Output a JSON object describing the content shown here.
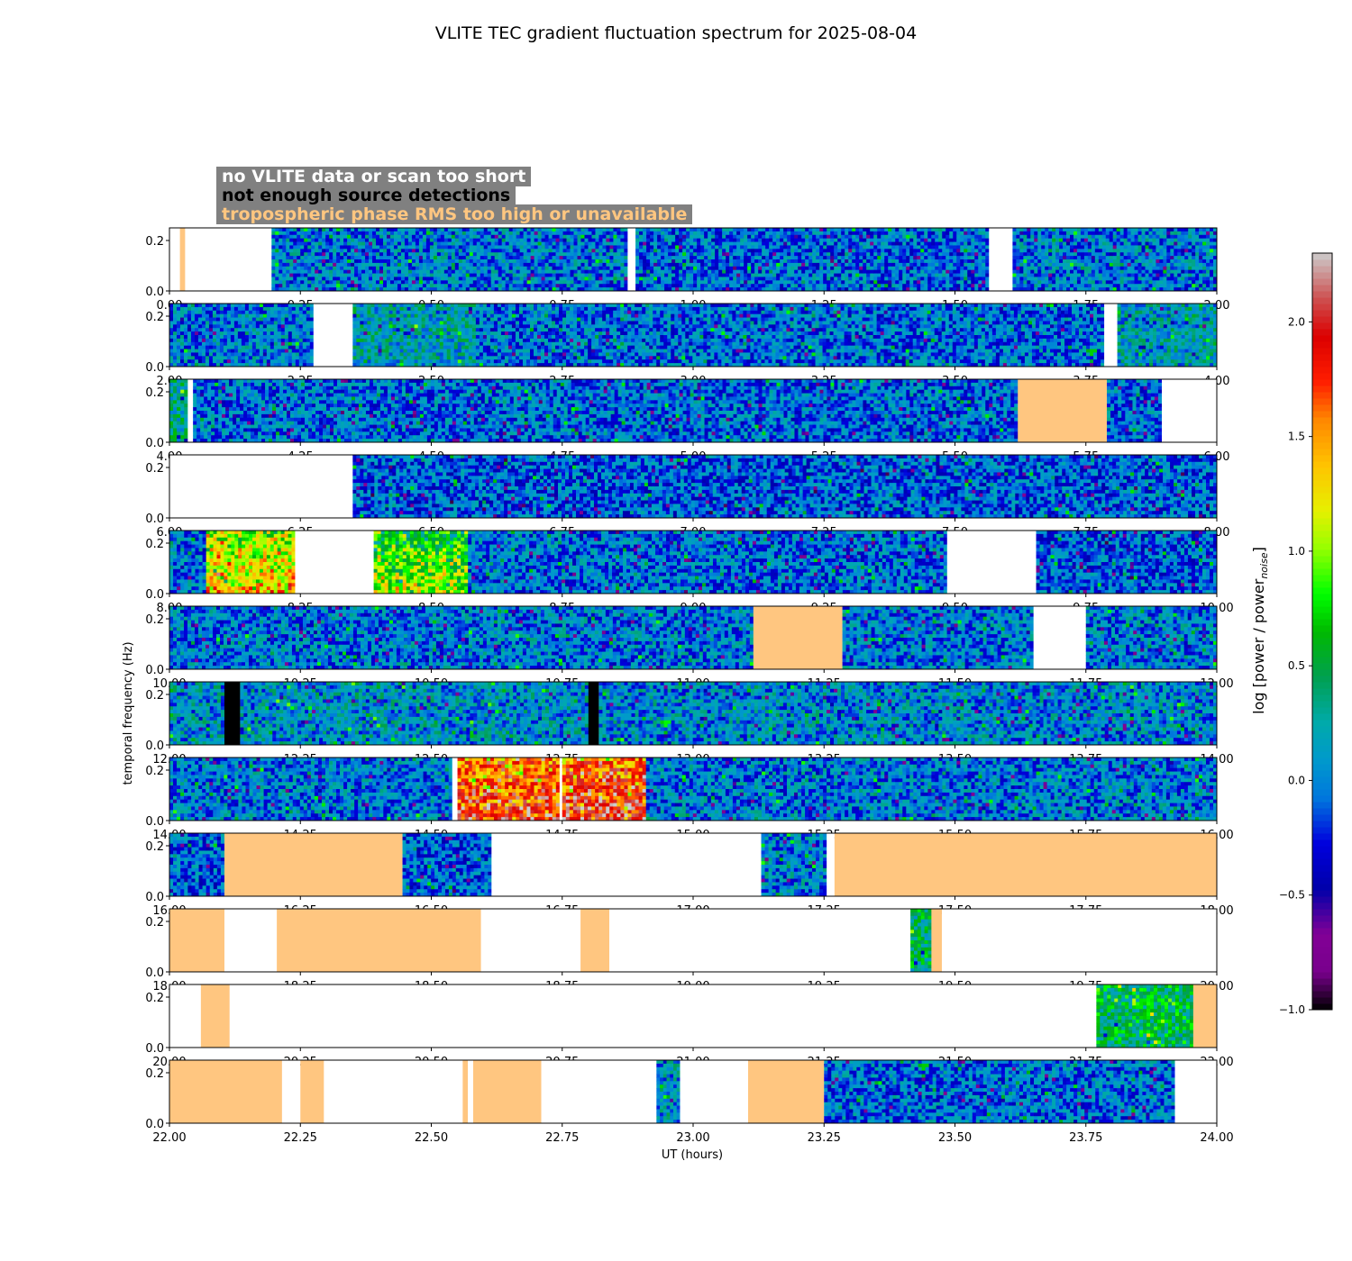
{
  "title": "VLITE TEC gradient fluctuation spectrum for 2025-08-04",
  "legend": [
    {
      "label": "no VLITE data or scan too short",
      "color": "#ffffff"
    },
    {
      "label": "not enough source detections",
      "color": "#000000"
    },
    {
      "label": "tropospheric phase RMS too high or unavailable",
      "color": "#ffc680"
    }
  ],
  "chart_data": {
    "type": "heatmap",
    "title": "VLITE TEC gradient fluctuation spectrum for 2025-08-04",
    "xlabel": "UT (hours)",
    "ylabel": "temporal frequency (Hz)",
    "ylim": [
      0,
      0.25
    ],
    "yticks": [
      "0.0",
      "0.2"
    ],
    "colorbar": {
      "label": "log [power / power",
      "label_sub": "noise",
      "label_end": "]",
      "range": [
        -1.0,
        2.3
      ],
      "ticks": [
        -1.0,
        -0.5,
        0.0,
        0.5,
        1.0,
        1.5,
        2.0
      ],
      "tick_labels": [
        "−1.0",
        "−0.5",
        "0.0",
        "0.5",
        "1.0",
        "1.5",
        "2.0"
      ]
    },
    "panels": [
      {
        "start": 0,
        "end": 2,
        "xticks": [
          "0.00",
          "0.25",
          "0.50",
          "0.75",
          "1.00",
          "1.25",
          "1.50",
          "1.75",
          "2.00"
        ],
        "segments": [
          {
            "s": 0.0,
            "e": 0.02,
            "k": "white"
          },
          {
            "s": 0.02,
            "e": 0.03,
            "k": "tropo"
          },
          {
            "s": 0.03,
            "e": 0.195,
            "k": "white"
          },
          {
            "s": 0.195,
            "e": 0.875,
            "k": "data",
            "lvl": 0.0
          },
          {
            "s": 0.875,
            "e": 0.89,
            "k": "white"
          },
          {
            "s": 0.89,
            "e": 1.565,
            "k": "data",
            "lvl": -0.05
          },
          {
            "s": 1.565,
            "e": 1.61,
            "k": "white"
          },
          {
            "s": 1.61,
            "e": 2.0,
            "k": "data",
            "lvl": 0.0
          }
        ]
      },
      {
        "start": 2,
        "end": 4,
        "xticks": [
          "2.00",
          "2.25",
          "2.50",
          "2.75",
          "3.00",
          "3.25",
          "3.50",
          "3.75",
          "4.00"
        ],
        "segments": [
          {
            "s": 2.0,
            "e": 2.275,
            "k": "data",
            "lvl": 0.0
          },
          {
            "s": 2.275,
            "e": 2.35,
            "k": "white"
          },
          {
            "s": 2.35,
            "e": 2.585,
            "k": "data",
            "lvl": 0.2
          },
          {
            "s": 2.585,
            "e": 3.785,
            "k": "data",
            "lvl": -0.05
          },
          {
            "s": 3.785,
            "e": 3.81,
            "k": "white"
          },
          {
            "s": 3.81,
            "e": 4.0,
            "k": "data",
            "lvl": 0.15
          }
        ]
      },
      {
        "start": 4,
        "end": 6,
        "xticks": [
          "4.00",
          "4.25",
          "4.50",
          "4.75",
          "5.00",
          "5.25",
          "5.50",
          "5.75",
          "6.00"
        ],
        "segments": [
          {
            "s": 4.0,
            "e": 4.035,
            "k": "data",
            "lvl": 0.3
          },
          {
            "s": 4.035,
            "e": 4.045,
            "k": "white"
          },
          {
            "s": 4.045,
            "e": 5.62,
            "k": "data",
            "lvl": -0.05
          },
          {
            "s": 5.62,
            "e": 5.79,
            "k": "tropo"
          },
          {
            "s": 5.79,
            "e": 5.895,
            "k": "data",
            "lvl": -0.05
          },
          {
            "s": 5.895,
            "e": 6.0,
            "k": "white"
          }
        ]
      },
      {
        "start": 6,
        "end": 8,
        "xticks": [
          "6.00",
          "6.25",
          "6.50",
          "6.75",
          "7.00",
          "7.25",
          "7.50",
          "7.75",
          "8.00"
        ],
        "segments": [
          {
            "s": 6.0,
            "e": 6.35,
            "k": "white"
          },
          {
            "s": 6.35,
            "e": 8.0,
            "k": "data",
            "lvl": -0.1
          }
        ]
      },
      {
        "start": 8,
        "end": 10,
        "xticks": [
          "8.00",
          "8.25",
          "8.50",
          "8.75",
          "9.00",
          "9.25",
          "9.50",
          "9.75",
          "10.00"
        ],
        "segments": [
          {
            "s": 8.0,
            "e": 8.07,
            "k": "data",
            "lvl": 0.0
          },
          {
            "s": 8.07,
            "e": 8.24,
            "k": "data",
            "lvl": 1.2
          },
          {
            "s": 8.24,
            "e": 8.39,
            "k": "white"
          },
          {
            "s": 8.39,
            "e": 8.57,
            "k": "data",
            "lvl": 0.9
          },
          {
            "s": 8.57,
            "e": 9.485,
            "k": "data",
            "lvl": -0.05
          },
          {
            "s": 9.485,
            "e": 9.655,
            "k": "white"
          },
          {
            "s": 9.655,
            "e": 10.0,
            "k": "data",
            "lvl": -0.1
          }
        ]
      },
      {
        "start": 10,
        "end": 12,
        "xticks": [
          "10.00",
          "10.25",
          "10.50",
          "10.75",
          "11.00",
          "11.25",
          "11.50",
          "11.75",
          "12.00"
        ],
        "segments": [
          {
            "s": 10.0,
            "e": 11.115,
            "k": "data",
            "lvl": 0.0
          },
          {
            "s": 11.115,
            "e": 11.285,
            "k": "tropo"
          },
          {
            "s": 11.285,
            "e": 11.65,
            "k": "data",
            "lvl": 0.0
          },
          {
            "s": 11.65,
            "e": 11.75,
            "k": "white"
          },
          {
            "s": 11.75,
            "e": 12.0,
            "k": "data",
            "lvl": 0.0
          }
        ]
      },
      {
        "start": 12,
        "end": 14,
        "xticks": [
          "12.00",
          "12.25",
          "12.50",
          "12.75",
          "13.00",
          "13.25",
          "13.50",
          "13.75",
          "14.00"
        ],
        "segments": [
          {
            "s": 12.0,
            "e": 12.105,
            "k": "data",
            "lvl": 0.1
          },
          {
            "s": 12.105,
            "e": 12.135,
            "k": "black"
          },
          {
            "s": 12.135,
            "e": 12.8,
            "k": "data",
            "lvl": 0.1
          },
          {
            "s": 12.8,
            "e": 12.82,
            "k": "black"
          },
          {
            "s": 12.82,
            "e": 14.0,
            "k": "data",
            "lvl": 0.05
          }
        ]
      },
      {
        "start": 14,
        "end": 16,
        "xticks": [
          "14.00",
          "14.25",
          "14.50",
          "14.75",
          "15.00",
          "15.25",
          "15.50",
          "15.75",
          "16.00"
        ],
        "segments": [
          {
            "s": 14.0,
            "e": 14.54,
            "k": "data",
            "lvl": 0.0
          },
          {
            "s": 14.54,
            "e": 14.55,
            "k": "white"
          },
          {
            "s": 14.55,
            "e": 14.745,
            "k": "data",
            "lvl": 1.7
          },
          {
            "s": 14.745,
            "e": 14.75,
            "k": "white"
          },
          {
            "s": 14.75,
            "e": 14.91,
            "k": "data",
            "lvl": 1.8
          },
          {
            "s": 14.91,
            "e": 16.0,
            "k": "data",
            "lvl": 0.0
          }
        ]
      },
      {
        "start": 16,
        "end": 18,
        "xticks": [
          "16.00",
          "16.25",
          "16.50",
          "16.75",
          "17.00",
          "17.25",
          "17.50",
          "17.75",
          "18.00"
        ],
        "segments": [
          {
            "s": 16.0,
            "e": 16.105,
            "k": "data",
            "lvl": -0.1
          },
          {
            "s": 16.105,
            "e": 16.445,
            "k": "tropo"
          },
          {
            "s": 16.445,
            "e": 16.615,
            "k": "data",
            "lvl": -0.1
          },
          {
            "s": 16.615,
            "e": 17.13,
            "k": "white"
          },
          {
            "s": 17.13,
            "e": 17.255,
            "k": "data",
            "lvl": 0.0
          },
          {
            "s": 17.255,
            "e": 17.27,
            "k": "white"
          },
          {
            "s": 17.27,
            "e": 18.0,
            "k": "tropo"
          }
        ]
      },
      {
        "start": 18,
        "end": 20,
        "xticks": [
          "18.00",
          "18.25",
          "18.50",
          "18.75",
          "19.00",
          "19.25",
          "19.50",
          "19.75",
          "20.00"
        ],
        "segments": [
          {
            "s": 18.0,
            "e": 18.105,
            "k": "tropo"
          },
          {
            "s": 18.105,
            "e": 18.205,
            "k": "white"
          },
          {
            "s": 18.205,
            "e": 18.595,
            "k": "tropo"
          },
          {
            "s": 18.595,
            "e": 18.785,
            "k": "white"
          },
          {
            "s": 18.785,
            "e": 18.84,
            "k": "tropo"
          },
          {
            "s": 18.84,
            "e": 19.415,
            "k": "white"
          },
          {
            "s": 19.415,
            "e": 19.455,
            "k": "data",
            "lvl": 0.4
          },
          {
            "s": 19.455,
            "e": 19.475,
            "k": "tropo"
          },
          {
            "s": 19.475,
            "e": 20.0,
            "k": "white"
          }
        ]
      },
      {
        "start": 20,
        "end": 22,
        "xticks": [
          "20.00",
          "20.25",
          "20.50",
          "20.75",
          "21.00",
          "21.25",
          "21.50",
          "21.75",
          "22.00"
        ],
        "segments": [
          {
            "s": 20.0,
            "e": 20.06,
            "k": "white"
          },
          {
            "s": 20.06,
            "e": 20.115,
            "k": "tropo"
          },
          {
            "s": 20.115,
            "e": 21.77,
            "k": "white"
          },
          {
            "s": 21.77,
            "e": 21.955,
            "k": "data",
            "lvl": 0.5
          },
          {
            "s": 21.955,
            "e": 22.0,
            "k": "tropo"
          }
        ]
      },
      {
        "start": 22,
        "end": 24,
        "xticks": [
          "22.00",
          "22.25",
          "22.50",
          "22.75",
          "23.00",
          "23.25",
          "23.50",
          "23.75",
          "24.00"
        ],
        "segments": [
          {
            "s": 22.0,
            "e": 22.215,
            "k": "tropo"
          },
          {
            "s": 22.215,
            "e": 22.25,
            "k": "white"
          },
          {
            "s": 22.25,
            "e": 22.295,
            "k": "tropo"
          },
          {
            "s": 22.295,
            "e": 22.56,
            "k": "white"
          },
          {
            "s": 22.56,
            "e": 22.57,
            "k": "tropo"
          },
          {
            "s": 22.57,
            "e": 22.58,
            "k": "white"
          },
          {
            "s": 22.58,
            "e": 22.71,
            "k": "tropo"
          },
          {
            "s": 22.71,
            "e": 22.93,
            "k": "white"
          },
          {
            "s": 22.93,
            "e": 22.975,
            "k": "data",
            "lvl": 0.1
          },
          {
            "s": 22.975,
            "e": 23.105,
            "k": "white"
          },
          {
            "s": 23.105,
            "e": 23.25,
            "k": "tropo"
          },
          {
            "s": 23.25,
            "e": 23.92,
            "k": "data",
            "lvl": -0.05
          },
          {
            "s": 23.92,
            "e": 24.0,
            "k": "white"
          }
        ]
      }
    ]
  }
}
